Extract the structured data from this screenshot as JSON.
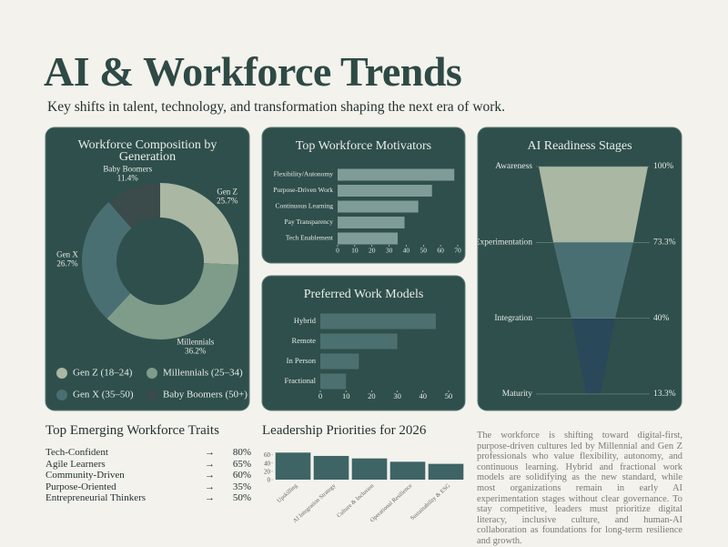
{
  "header": {
    "title": "AI & Workforce Trends",
    "subtitle": "Key shifts in talent, technology, and transformation shaping the next era of work."
  },
  "chart_data": [
    {
      "type": "pie",
      "title": "Workforce Composition by Generation",
      "categories": [
        "Gen Z",
        "Millennials",
        "Gen X",
        "Baby Boomers"
      ],
      "values": [
        25.7,
        36.2,
        26.7,
        11.4
      ],
      "value_labels": [
        "25.7%",
        "36.2%",
        "26.7%",
        "11.4%"
      ],
      "legend_labels": [
        "Gen Z (18–24)",
        "Millennials (25–34)",
        "Gen X (35–50)",
        "Baby Boomers (50+)"
      ],
      "colors": [
        "#aab7a2",
        "#7f9c8a",
        "#4a6f72",
        "#3b4b4b"
      ],
      "donut": true,
      "legend": "bottom"
    },
    {
      "type": "hbar",
      "title": "Top Workforce Motivators",
      "categories": [
        "Flexibility/Autonomy",
        "Purpose-Driven Work",
        "Continuous Learning",
        "Pay Transparency",
        "Tech Enablement"
      ],
      "values": [
        68,
        55,
        47,
        39,
        35
      ],
      "color": "#7f9c98",
      "xlim": [
        0,
        70
      ],
      "xticks": [
        0,
        10,
        20,
        30,
        40,
        50,
        60,
        70
      ]
    },
    {
      "type": "hbar",
      "title": "Preferred Work Models",
      "categories": [
        "Hybrid",
        "Remote",
        "In Person",
        "Fractional"
      ],
      "values": [
        45,
        30,
        15,
        10
      ],
      "color": "#4c7070",
      "xlim": [
        0,
        50
      ],
      "xticks": [
        0,
        10,
        20,
        30,
        40,
        50
      ]
    },
    {
      "type": "funnel",
      "title": "AI Readiness Stages",
      "categories": [
        "Awareness",
        "Experimentation",
        "Integration",
        "Maturity"
      ],
      "values": [
        100,
        73.3,
        40,
        13.3
      ],
      "value_labels": [
        "100%",
        "73.3%",
        "40%",
        "13.3%"
      ],
      "colors": [
        "#aab7a2",
        "#4a6f72",
        "#29495a"
      ]
    },
    {
      "type": "bar",
      "title": "Leadership Priorities for 2026",
      "categories": [
        "Upskilling",
        "AI Integration Strategy",
        "Culture & Inclusion",
        "Operational Resilience",
        "Sustainability & ESG"
      ],
      "values": [
        65,
        57,
        51,
        43,
        38
      ],
      "color": "#3f6466",
      "ylim": [
        0,
        70
      ],
      "yticks": [
        0,
        20,
        40,
        60
      ]
    }
  ],
  "traits": {
    "title": "Top Emerging Workforce Traits",
    "arrow": "→",
    "rows": [
      [
        "Tech-Confident",
        "80%"
      ],
      [
        "Agile Learners",
        "65%"
      ],
      [
        "Community-Driven",
        "60%"
      ],
      [
        "Purpose-Oriented",
        "35%"
      ],
      [
        "Entrepreneurial Thinkers",
        "50%"
      ]
    ]
  },
  "summary": "The workforce is shifting toward digital-first, purpose-driven cultures led by Millennial and Gen Z professionals who value flexibility, autonomy, and continuous learning. Hybrid and fractional work models are solidifying as the new standard, while most organizations remain in early AI experimentation stages without clear governance. To stay competitive, leaders must prioritize digital literacy, inclusive culture, and human-AI collaboration as foundations for long-term resilience and growth."
}
